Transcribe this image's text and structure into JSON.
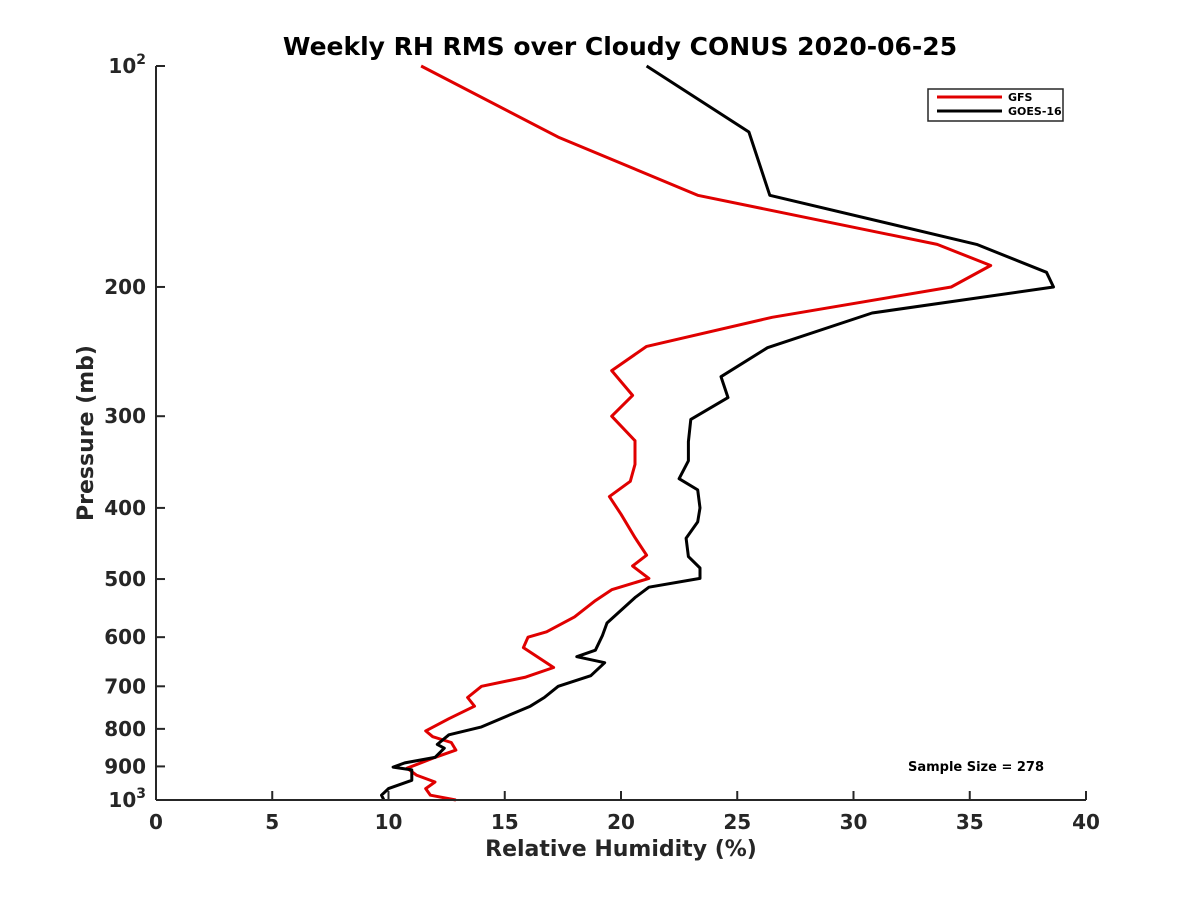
{
  "chart_data": {
    "type": "line",
    "title": "Weekly RH RMS over Cloudy CONUS 2020-06-25",
    "xlabel": "Relative Humidity (%)",
    "ylabel": "Pressure (mb)",
    "xlim": [
      0,
      40
    ],
    "ylim": [
      100,
      1000
    ],
    "yscale": "log",
    "y_reversed": true,
    "grid": false,
    "legend_position": "top-right",
    "x_ticks": [
      0,
      5,
      10,
      15,
      20,
      25,
      30,
      35,
      40
    ],
    "y_ticks": [
      {
        "value": 100,
        "base": "10",
        "exp": "2"
      },
      {
        "value": 200,
        "label": "200"
      },
      {
        "value": 300,
        "label": "300"
      },
      {
        "value": 400,
        "label": "400"
      },
      {
        "value": 500,
        "label": "500"
      },
      {
        "value": 600,
        "label": "600"
      },
      {
        "value": 700,
        "label": "700"
      },
      {
        "value": 800,
        "label": "800"
      },
      {
        "value": 900,
        "label": "900"
      },
      {
        "value": 1000,
        "base": "10",
        "exp": "3"
      }
    ],
    "series": [
      {
        "name": "GFS",
        "color": "#e00000",
        "points": [
          [
            11.4,
            100
          ],
          [
            17.3,
            125
          ],
          [
            23.3,
            150
          ],
          [
            33.6,
            175
          ],
          [
            35.9,
            187
          ],
          [
            34.2,
            200
          ],
          [
            26.5,
            220
          ],
          [
            21.1,
            241
          ],
          [
            19.6,
            260
          ],
          [
            20.5,
            281
          ],
          [
            19.6,
            300
          ],
          [
            20.6,
            324
          ],
          [
            20.6,
            349
          ],
          [
            20.4,
            368
          ],
          [
            19.5,
            386
          ],
          [
            20.0,
            408
          ],
          [
            20.6,
            439
          ],
          [
            21.1,
            464
          ],
          [
            20.5,
            480
          ],
          [
            21.2,
            499
          ],
          [
            19.6,
            517
          ],
          [
            18.9,
            535
          ],
          [
            18.0,
            563
          ],
          [
            16.8,
            590
          ],
          [
            16.0,
            600
          ],
          [
            15.8,
            620
          ],
          [
            17.1,
            660
          ],
          [
            15.9,
            680
          ],
          [
            14.0,
            700
          ],
          [
            13.4,
            725
          ],
          [
            13.7,
            745
          ],
          [
            12.6,
            775
          ],
          [
            11.6,
            805
          ],
          [
            11.9,
            820
          ],
          [
            12.7,
            835
          ],
          [
            12.9,
            855
          ],
          [
            12.0,
            875
          ],
          [
            10.8,
            905
          ],
          [
            11.2,
            925
          ],
          [
            12.0,
            945
          ],
          [
            11.6,
            965
          ],
          [
            11.8,
            985
          ],
          [
            12.9,
            1000
          ]
        ]
      },
      {
        "name": "GOES-16",
        "color": "#000000",
        "points": [
          [
            21.1,
            100
          ],
          [
            25.5,
            123
          ],
          [
            26.4,
            150
          ],
          [
            35.3,
            175
          ],
          [
            38.3,
            191
          ],
          [
            38.6,
            200
          ],
          [
            30.8,
            217
          ],
          [
            26.3,
            242
          ],
          [
            24.3,
            265
          ],
          [
            24.6,
            283
          ],
          [
            23.0,
            303
          ],
          [
            22.9,
            325
          ],
          [
            22.9,
            345
          ],
          [
            22.5,
            365
          ],
          [
            23.3,
            378
          ],
          [
            23.4,
            400
          ],
          [
            23.3,
            418
          ],
          [
            22.8,
            440
          ],
          [
            22.9,
            466
          ],
          [
            23.4,
            483
          ],
          [
            23.4,
            499
          ],
          [
            21.2,
            513
          ],
          [
            20.6,
            530
          ],
          [
            19.4,
            574
          ],
          [
            19.2,
            597
          ],
          [
            18.9,
            625
          ],
          [
            18.1,
            638
          ],
          [
            19.3,
            650
          ],
          [
            18.7,
            677
          ],
          [
            17.3,
            700
          ],
          [
            16.7,
            725
          ],
          [
            16.1,
            745
          ],
          [
            14.0,
            795
          ],
          [
            12.6,
            815
          ],
          [
            12.1,
            840
          ],
          [
            12.4,
            850
          ],
          [
            12.0,
            875
          ],
          [
            10.7,
            890
          ],
          [
            10.2,
            902
          ],
          [
            11.0,
            910
          ],
          [
            11.0,
            940
          ],
          [
            10.0,
            965
          ],
          [
            9.7,
            985
          ],
          [
            9.8,
            1000
          ]
        ]
      }
    ],
    "annotation": "Sample Size = 278"
  }
}
